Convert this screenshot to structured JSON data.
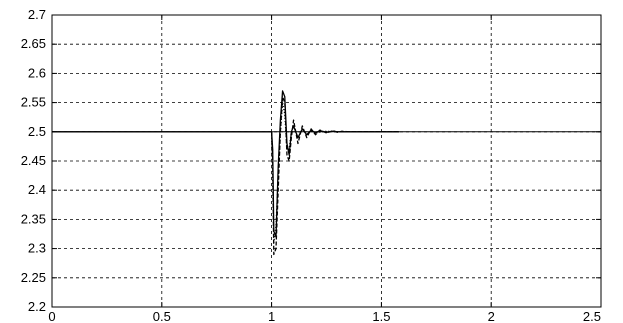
{
  "chart_data": {
    "type": "line",
    "title": "",
    "xlabel": "",
    "ylabel": "",
    "xlim": [
      0,
      2.5
    ],
    "ylim": [
      2.2,
      2.7
    ],
    "grid": true,
    "grid_style": "dashed",
    "xticks": [
      0,
      0.5,
      1,
      1.5,
      2,
      2.5
    ],
    "xtick_labels": [
      "0",
      "0.5",
      "1",
      "1.5",
      "2",
      "2.5"
    ],
    "yticks": [
      2.2,
      2.25,
      2.3,
      2.35,
      2.4,
      2.45,
      2.5,
      2.55,
      2.6,
      2.65,
      2.7
    ],
    "ytick_labels": [
      "2.2",
      "2.25",
      "2.3",
      "2.35",
      "2.4",
      "2.45",
      "2.5",
      "2.55",
      "2.6",
      "2.65",
      "2.7"
    ],
    "reference_line": {
      "y": 2.5,
      "color": "#000000"
    },
    "series": [
      {
        "style": "solid",
        "color": "#000000",
        "x": [
          0,
          1.0,
          1.005,
          1.01,
          1.02,
          1.03,
          1.04,
          1.05,
          1.06,
          1.07,
          1.08,
          1.09,
          1.1,
          1.12,
          1.14,
          1.16,
          1.18,
          1.2,
          1.22,
          1.25,
          1.28,
          1.3,
          1.32,
          1.35,
          1.38,
          1.4,
          1.45,
          1.5,
          1.58
        ],
        "y": [
          2.5,
          2.5,
          2.47,
          2.33,
          2.32,
          2.44,
          2.52,
          2.57,
          2.56,
          2.48,
          2.46,
          2.5,
          2.51,
          2.49,
          2.505,
          2.495,
          2.503,
          2.498,
          2.502,
          2.499,
          2.501,
          2.5,
          2.5,
          2.5,
          2.5,
          2.5,
          2.5,
          2.5,
          2.5
        ]
      },
      {
        "style": "dashed",
        "color": "#000000",
        "x": [
          1.0,
          1.005,
          1.01,
          1.02,
          1.03,
          1.04,
          1.05,
          1.06,
          1.07,
          1.08,
          1.09,
          1.1,
          1.12,
          1.14,
          1.16,
          1.18,
          1.2,
          1.22,
          1.25,
          1.28,
          1.3,
          1.32,
          1.35,
          1.38,
          1.4,
          1.45,
          1.5,
          1.58
        ],
        "y": [
          2.5,
          2.45,
          2.29,
          2.3,
          2.4,
          2.5,
          2.56,
          2.55,
          2.46,
          2.45,
          2.49,
          2.52,
          2.48,
          2.51,
          2.49,
          2.505,
          2.495,
          2.503,
          2.498,
          2.502,
          2.499,
          2.501,
          2.5,
          2.5,
          2.5,
          2.5,
          2.5,
          2.5
        ]
      },
      {
        "style": "dotted",
        "color": "#000000",
        "x": [
          1.0,
          1.01,
          1.02,
          1.03,
          1.04,
          1.05,
          1.06,
          1.07,
          1.08,
          1.09,
          1.1,
          1.12,
          1.14,
          1.16,
          1.18,
          1.2,
          1.25,
          1.3,
          1.35,
          1.4,
          1.5,
          1.58
        ],
        "y": [
          2.5,
          2.31,
          2.34,
          2.42,
          2.5,
          2.55,
          2.53,
          2.47,
          2.47,
          2.5,
          2.51,
          2.49,
          2.505,
          2.495,
          2.502,
          2.498,
          2.501,
          2.5,
          2.5,
          2.5,
          2.5,
          2.5
        ]
      }
    ]
  }
}
